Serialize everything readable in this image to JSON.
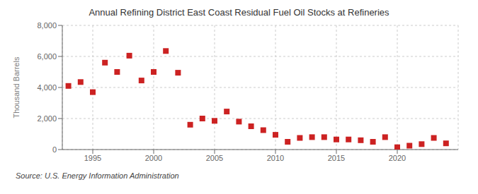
{
  "chart_data": {
    "type": "scatter",
    "title": "Annual Refining District East Coast Residual Fuel Oil Stocks at Refineries",
    "ylabel": "Thousand Barrels",
    "source": "Source: U.S. Energy Information Administration",
    "x": [
      1993,
      1994,
      1995,
      1996,
      1997,
      1998,
      1999,
      2000,
      2001,
      2002,
      2003,
      2004,
      2005,
      2006,
      2007,
      2008,
      2009,
      2010,
      2011,
      2012,
      2013,
      2014,
      2015,
      2016,
      2017,
      2018,
      2019,
      2020,
      2021,
      2022,
      2023,
      2024
    ],
    "values": [
      4100,
      4350,
      3700,
      5600,
      5000,
      6050,
      4450,
      5000,
      6350,
      4950,
      1600,
      2000,
      1850,
      2450,
      1800,
      1500,
      1250,
      950,
      500,
      750,
      800,
      800,
      650,
      650,
      600,
      500,
      800,
      150,
      250,
      350,
      750,
      400
    ],
    "color": "#cc2222",
    "marker": "square",
    "xlim": [
      1992.5,
      2025
    ],
    "xticks": [
      1995,
      2000,
      2005,
      2010,
      2015,
      2020
    ],
    "ylim": [
      0,
      8000
    ],
    "yticks": [
      0,
      {
        "value": 2000,
        "label": "2,000"
      },
      {
        "value": 4000,
        "label": "4,000"
      },
      {
        "value": 6000,
        "label": "6,000"
      },
      {
        "value": 8000,
        "label": "8,000"
      }
    ],
    "grid": true
  }
}
